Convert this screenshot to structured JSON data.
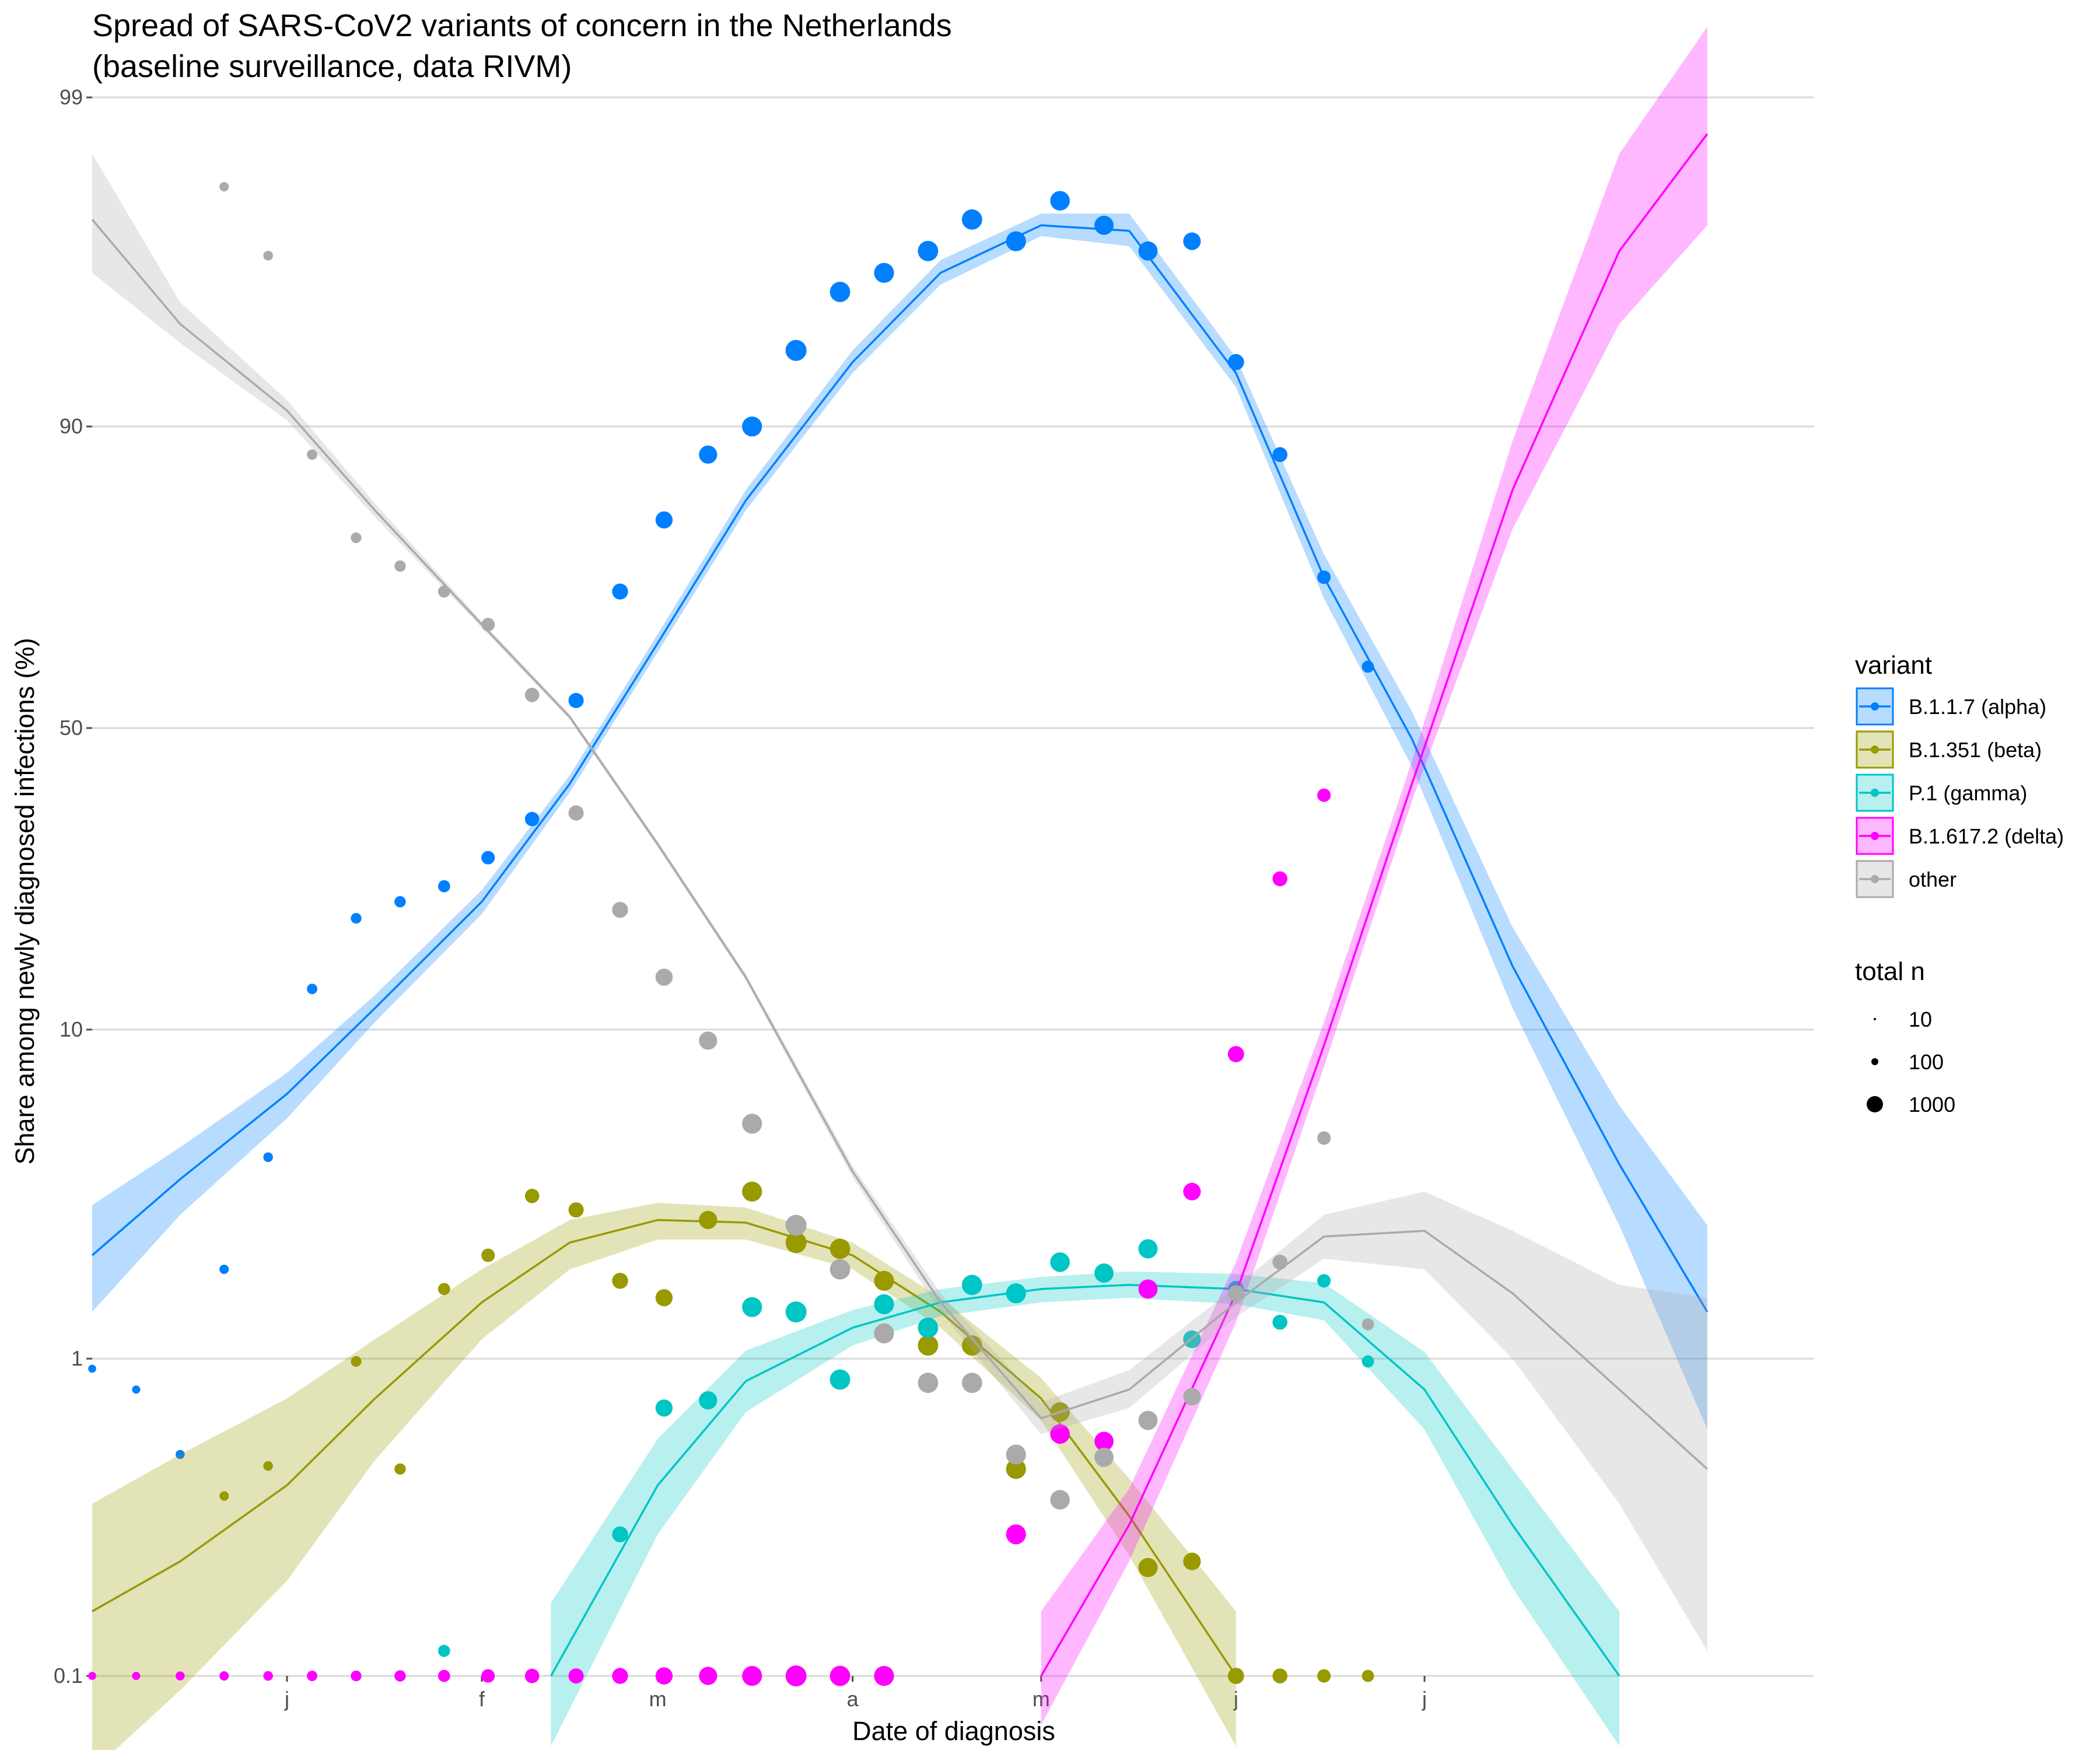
{
  "chart_data": {
    "type": "scatter",
    "title": "Spread of SARS-CoV2 variants of concern in the Netherlands",
    "subtitle": "(baseline surveillance, data RIVM)",
    "xlabel": "Date of diagnosis",
    "ylabel": "Share among newly diagnosed infections (%)",
    "y_scale": "logit",
    "y_ticks": [
      0.1,
      1,
      10,
      50,
      90,
      99
    ],
    "y_tick_labels": [
      "0.1",
      "1",
      "10",
      "50",
      "90",
      "99"
    ],
    "ylim": [
      0.1,
      99
    ],
    "xlim": [
      "2020-12-01",
      "2021-09-01"
    ],
    "x_ticks": [
      "2021-01-01",
      "2021-02-01",
      "2021-03-01",
      "2021-04-01",
      "2021-05-01",
      "2021-06-01",
      "2021-07-01"
    ],
    "x_tick_labels": [
      "j",
      "f",
      "m",
      "a",
      "m",
      "j",
      "j"
    ],
    "grid": true,
    "legend_position": "right",
    "legend_title": "variant",
    "size_legend_title": "total n",
    "size_legend": [
      {
        "label": "10",
        "n": 10
      },
      {
        "label": "100",
        "n": 100
      },
      {
        "label": "1000",
        "n": 1000
      }
    ],
    "x": [
      "2020-12-01",
      "2020-12-08",
      "2020-12-15",
      "2020-12-22",
      "2020-12-29",
      "2021-01-05",
      "2021-01-12",
      "2021-01-19",
      "2021-01-26",
      "2021-02-02",
      "2021-02-09",
      "2021-02-16",
      "2021-02-23",
      "2021-03-02",
      "2021-03-09",
      "2021-03-16",
      "2021-03-23",
      "2021-03-30",
      "2021-04-06",
      "2021-04-13",
      "2021-04-20",
      "2021-04-27",
      "2021-05-04",
      "2021-05-11",
      "2021-05-18",
      "2021-05-25",
      "2021-06-01",
      "2021-06-08",
      "2021-06-15",
      "2021-06-22"
    ],
    "total_n": [
      20,
      22,
      35,
      40,
      45,
      60,
      65,
      80,
      100,
      140,
      170,
      200,
      230,
      280,
      330,
      420,
      480,
      440,
      420,
      440,
      440,
      420,
      400,
      380,
      380,
      300,
      240,
      190,
      140,
      100
    ],
    "series": [
      {
        "name": "B.1.1.7 (alpha)",
        "color": "#0080ff",
        "values": [
          0.93,
          0.8,
          0.5,
          1.9,
          4.2,
          13,
          20,
          22,
          24,
          28,
          34,
          55,
          73,
          82,
          88,
          90,
          94,
          96,
          96.5,
          97,
          97.6,
          97.2,
          97.9,
          97.5,
          97,
          97.2,
          93.5,
          88,
          75,
          61
        ],
        "fit": [
          [
            "2020-12-01",
            2.1
          ],
          [
            "2020-12-15",
            3.6
          ],
          [
            "2021-01-01",
            6.5
          ],
          [
            "2021-01-15",
            11.5
          ],
          [
            "2021-02-01",
            22
          ],
          [
            "2021-02-15",
            40
          ],
          [
            "2021-03-01",
            65
          ],
          [
            "2021-03-15",
            84
          ],
          [
            "2021-04-01",
            93.5
          ],
          [
            "2021-04-15",
            96.5
          ],
          [
            "2021-05-01",
            97.5
          ],
          [
            "2021-05-15",
            97.4
          ],
          [
            "2021-06-01",
            93
          ],
          [
            "2021-06-15",
            75
          ],
          [
            "2021-06-29",
            48
          ],
          [
            "2021-07-15",
            15
          ],
          [
            "2021-08-01",
            4
          ],
          [
            "2021-08-15",
            1.4
          ]
        ],
        "band": [
          [
            1.4,
            3.0
          ],
          [
            2.8,
            4.5
          ],
          [
            5.5,
            7.5
          ],
          [
            10.5,
            12.5
          ],
          [
            20.5,
            23.5
          ],
          [
            38.5,
            41.5
          ],
          [
            63.5,
            66.5
          ],
          [
            83,
            85
          ],
          [
            93,
            94
          ],
          [
            96.2,
            96.8
          ],
          [
            97.3,
            97.7
          ],
          [
            97.1,
            97.7
          ],
          [
            92.3,
            93.7
          ],
          [
            72,
            78
          ],
          [
            43,
            53
          ],
          [
            11.5,
            19
          ],
          [
            2.6,
            6
          ],
          [
            0.6,
            2.6
          ]
        ]
      },
      {
        "name": "B.1.351 (beta)",
        "color": "#999900",
        "values": [
          null,
          null,
          null,
          0.37,
          0.46,
          null,
          0.98,
          0.45,
          1.65,
          2.1,
          3.2,
          2.9,
          1.75,
          1.55,
          2.7,
          3.3,
          2.3,
          2.2,
          1.75,
          1.1,
          1.1,
          0.45,
          0.68,
          null,
          0.22,
          0.23,
          0.1,
          0.1,
          0.1,
          0.1
        ],
        "fit": [
          [
            "2020-12-01",
            0.16
          ],
          [
            "2020-12-15",
            0.23
          ],
          [
            "2021-01-01",
            0.4
          ],
          [
            "2021-01-15",
            0.75
          ],
          [
            "2021-02-01",
            1.5
          ],
          [
            "2021-02-15",
            2.3
          ],
          [
            "2021-03-01",
            2.7
          ],
          [
            "2021-03-15",
            2.65
          ],
          [
            "2021-04-01",
            2.1
          ],
          [
            "2021-04-15",
            1.4
          ],
          [
            "2021-05-01",
            0.75
          ],
          [
            "2021-05-15",
            0.32
          ],
          [
            "2021-06-01",
            0.1
          ]
        ],
        "band": [
          [
            0.05,
            0.35
          ],
          [
            0.09,
            0.5
          ],
          [
            0.2,
            0.75
          ],
          [
            0.48,
            1.15
          ],
          [
            1.15,
            1.9
          ],
          [
            1.9,
            2.7
          ],
          [
            2.35,
            3.05
          ],
          [
            2.35,
            2.95
          ],
          [
            1.9,
            2.3
          ],
          [
            1.25,
            1.55
          ],
          [
            0.64,
            0.87
          ],
          [
            0.24,
            0.42
          ],
          [
            0.06,
            0.16
          ]
        ]
      },
      {
        "name": "P.1 (gamma)",
        "color": "#00c5c5",
        "values": [
          null,
          null,
          null,
          null,
          null,
          null,
          null,
          null,
          0.12,
          null,
          null,
          null,
          0.28,
          0.7,
          0.74,
          1.45,
          1.4,
          0.86,
          1.48,
          1.25,
          1.7,
          1.6,
          2.0,
          1.85,
          2.2,
          1.15,
          1.65,
          1.3,
          1.75,
          0.98
        ],
        "fit": [
          [
            "2021-02-12",
            0.1
          ],
          [
            "2021-03-01",
            0.4
          ],
          [
            "2021-03-15",
            0.85
          ],
          [
            "2021-04-01",
            1.25
          ],
          [
            "2021-04-15",
            1.5
          ],
          [
            "2021-05-01",
            1.65
          ],
          [
            "2021-05-15",
            1.7
          ],
          [
            "2021-06-01",
            1.65
          ],
          [
            "2021-06-15",
            1.5
          ],
          [
            "2021-07-01",
            0.8
          ],
          [
            "2021-07-15",
            0.3
          ],
          [
            "2021-08-01",
            0.1
          ]
        ],
        "band": [
          [
            0.06,
            0.17
          ],
          [
            0.28,
            0.56
          ],
          [
            0.68,
            1.06
          ],
          [
            1.1,
            1.42
          ],
          [
            1.36,
            1.65
          ],
          [
            1.5,
            1.8
          ],
          [
            1.55,
            1.87
          ],
          [
            1.48,
            1.84
          ],
          [
            1.32,
            1.72
          ],
          [
            0.6,
            1.05
          ],
          [
            0.19,
            0.45
          ],
          [
            0.06,
            0.16
          ]
        ]
      },
      {
        "name": "B.1.617.2 (delta)",
        "color": "#ff00ff",
        "values": [
          0.1,
          0.1,
          0.1,
          0.1,
          0.1,
          0.1,
          0.1,
          0.1,
          0.1,
          0.1,
          0.1,
          0.1,
          0.1,
          0.1,
          0.1,
          0.1,
          0.1,
          0.1,
          0.1,
          null,
          null,
          0.28,
          0.58,
          0.55,
          1.65,
          3.3,
          8.5,
          25,
          38,
          null
        ],
        "fit": [
          [
            "2021-05-01",
            0.1
          ],
          [
            "2021-05-15",
            0.3
          ],
          [
            "2021-06-01",
            1.6
          ],
          [
            "2021-06-15",
            9
          ],
          [
            "2021-06-29",
            40
          ],
          [
            "2021-07-15",
            85
          ],
          [
            "2021-08-01",
            97
          ],
          [
            "2021-08-15",
            98.7
          ]
        ],
        "band": [
          [
            0.07,
            0.16
          ],
          [
            0.23,
            0.39
          ],
          [
            1.3,
            2.0
          ],
          [
            7.8,
            10.5
          ],
          [
            37,
            44
          ],
          [
            81,
            89
          ],
          [
            95,
            98.5
          ],
          [
            97.5,
            99.4
          ]
        ]
      },
      {
        "name": "other",
        "color": "#aaaaaa",
        "values": [
          null,
          null,
          null,
          98.1,
          96.9,
          88,
          80,
          76.5,
          73,
          68,
          56,
          35,
          21,
          14,
          9.3,
          5.3,
          2.6,
          1.9,
          1.2,
          0.84,
          0.84,
          0.5,
          0.36,
          0.49,
          0.64,
          0.76,
          1.6,
          2.0,
          4.8,
          1.28
        ],
        "fit": [
          [
            "2020-12-01",
            97.6
          ],
          [
            "2020-12-15",
            95
          ],
          [
            "2021-01-01",
            91
          ],
          [
            "2021-01-15",
            83
          ],
          [
            "2021-02-01",
            68
          ],
          [
            "2021-02-15",
            52
          ],
          [
            "2021-03-01",
            30
          ],
          [
            "2021-03-15",
            14
          ],
          [
            "2021-04-01",
            3.8
          ],
          [
            "2021-04-15",
            1.5
          ],
          [
            "2021-05-01",
            0.65
          ],
          [
            "2021-05-15",
            0.8
          ],
          [
            "2021-06-01",
            1.5
          ],
          [
            "2021-06-15",
            2.4
          ],
          [
            "2021-07-01",
            2.5
          ],
          [
            "2021-07-15",
            1.6
          ],
          [
            "2021-08-01",
            0.8
          ],
          [
            "2021-08-15",
            0.45
          ]
        ],
        "band": [
          [
            96.5,
            98.5
          ],
          [
            94.3,
            95.7
          ],
          [
            90.4,
            91.6
          ],
          [
            82.3,
            83.7
          ],
          [
            67.5,
            68.5
          ],
          [
            51.5,
            52.5
          ],
          [
            29.5,
            30.5
          ],
          [
            13.7,
            14.3
          ],
          [
            3.65,
            3.95
          ],
          [
            1.4,
            1.6
          ],
          [
            0.58,
            0.73
          ],
          [
            0.7,
            0.92
          ],
          [
            1.35,
            1.68
          ],
          [
            2.05,
            2.8
          ],
          [
            1.9,
            3.3
          ],
          [
            1.0,
            2.5
          ],
          [
            0.35,
            1.7
          ],
          [
            0.12,
            1.55
          ]
        ]
      }
    ]
  }
}
